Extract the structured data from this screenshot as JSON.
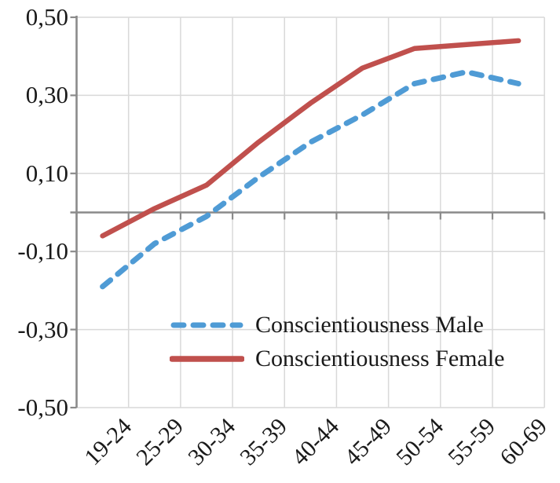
{
  "chart_data": {
    "type": "line",
    "title": "",
    "xlabel": "",
    "ylabel": "",
    "categories": [
      "19-24",
      "25-29",
      "30-34",
      "35-39",
      "40-44",
      "45-49",
      "50-54",
      "55-59",
      "60-69"
    ],
    "series": [
      {
        "name": "Conscientiousness Male",
        "values": [
          -0.19,
          -0.08,
          -0.01,
          0.09,
          0.18,
          0.25,
          0.33,
          0.36,
          0.33
        ],
        "color": "#4f9bd5",
        "line_style": "dashed"
      },
      {
        "name": "Conscientiousness Female",
        "values": [
          -0.06,
          0.01,
          0.07,
          0.18,
          0.28,
          0.37,
          0.42,
          0.43,
          0.44
        ],
        "color": "#c0504d",
        "line_style": "solid"
      }
    ],
    "ylim": [
      -0.5,
      0.5
    ],
    "y_ticks": [
      {
        "value": 0.5,
        "label": "0,50"
      },
      {
        "value": 0.3,
        "label": "0,30"
      },
      {
        "value": 0.1,
        "label": "0,10"
      },
      {
        "value": -0.1,
        "label": "-0,10"
      },
      {
        "value": -0.3,
        "label": "-0,30"
      },
      {
        "value": -0.5,
        "label": "-0,50"
      }
    ],
    "grid": true,
    "zero_line": true,
    "legend_position": "inside-lower-center"
  },
  "colors": {
    "grid": "#d9d9d9",
    "axis": "#8a8a8a",
    "text": "#1a1a1a"
  }
}
